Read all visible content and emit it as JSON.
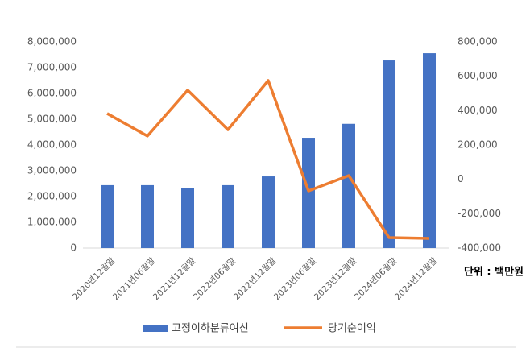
{
  "chart_data": {
    "type": "bar",
    "annotation": "단위 : 백만원",
    "categories": [
      "2020년12월말",
      "2021년06월말",
      "2021년12월말",
      "2022년06월말",
      "2022년12월말",
      "2023년06월말",
      "2023년12월말",
      "2024년06월말",
      "2024년12월말"
    ],
    "series": [
      {
        "name": "고정이하분류여신",
        "type": "bar",
        "color": "#4472c4",
        "values": [
          2440000,
          2440000,
          2340000,
          2440000,
          2780000,
          4280000,
          4820000,
          7280000,
          7560000
        ]
      },
      {
        "name": "당기순이익",
        "type": "line",
        "axis": "y2",
        "color": "#ed7d31",
        "values": [
          383000,
          252000,
          519000,
          289000,
          575000,
          -67000,
          22000,
          -339000,
          -344000
        ]
      }
    ],
    "ylim": [
      0,
      8000000
    ],
    "yticks": [
      0,
      {
        "value": 1000000,
        "label": "1,000,000"
      },
      {
        "value": 2000000,
        "label": "2,000,000"
      },
      {
        "value": 3000000,
        "label": "3,000,000"
      },
      {
        "value": 4000000,
        "label": "4,000,000"
      },
      {
        "value": 5000000,
        "label": "5,000,000"
      },
      {
        "value": 6000000,
        "label": "6,000,000"
      },
      {
        "value": 7000000,
        "label": "7,000,000"
      },
      {
        "value": 8000000,
        "label": "8,000,000"
      }
    ],
    "y2lim": [
      -400000,
      800000
    ],
    "y2ticks": [
      {
        "value": -400000,
        "label": "-400,000"
      },
      {
        "value": -200000,
        "label": "-200,000"
      },
      0,
      {
        "value": 200000,
        "label": "200,000"
      },
      {
        "value": 400000,
        "label": "400,000"
      },
      {
        "value": 600000,
        "label": "600,000"
      },
      {
        "value": 800000,
        "label": "800,000"
      }
    ],
    "grid": false
  }
}
